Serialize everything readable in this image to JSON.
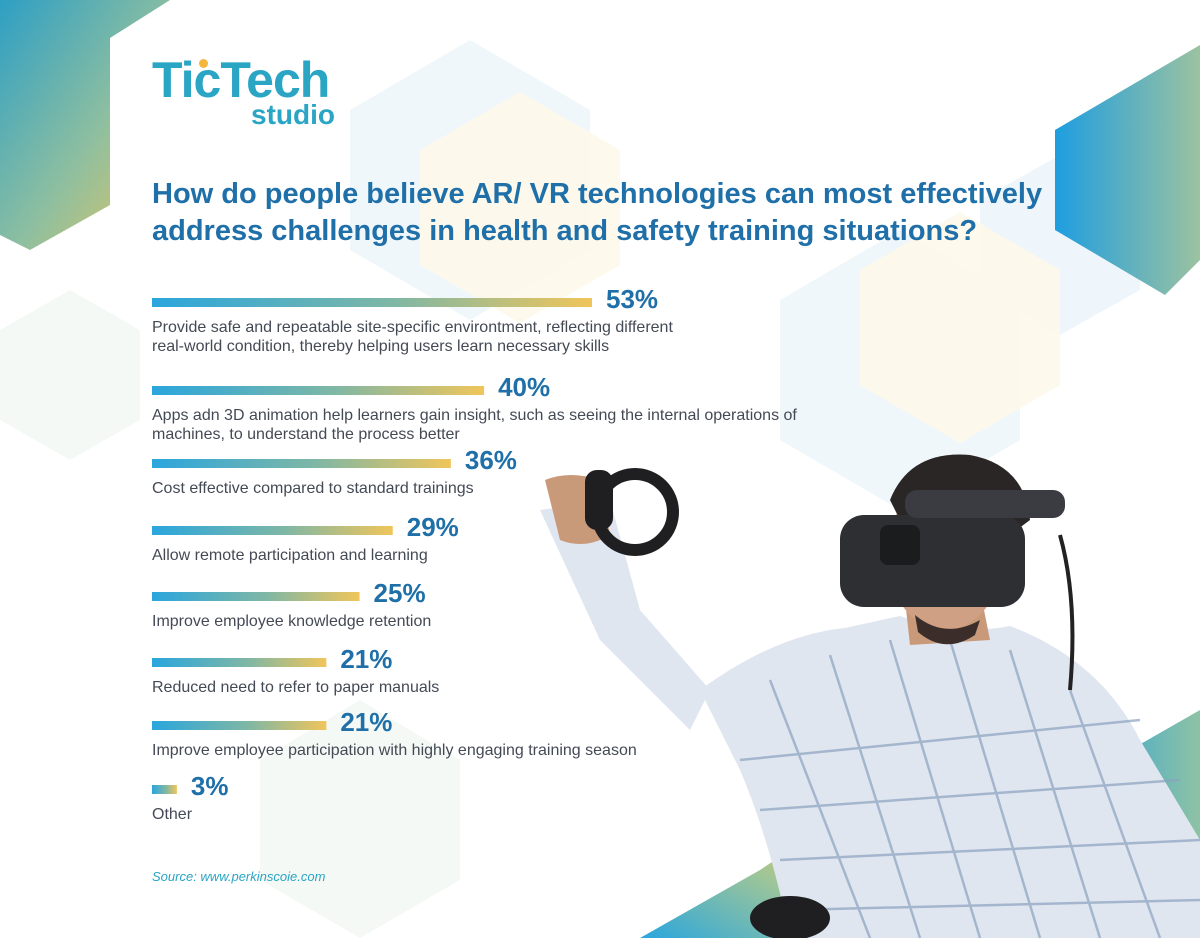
{
  "colors": {
    "bar_start": "#2aa6dd",
    "bar_mid": "#7fb7a5",
    "bar_end": "#f0c55a",
    "value_text": "#1f6fa8",
    "accent_teal": "#2aa5c4"
  },
  "logo": {
    "main": "TicTech",
    "sub": "studio"
  },
  "chart_data": {
    "type": "bar",
    "orientation": "horizontal",
    "title": "How do people believe AR/ VR technologies can most effectively address challenges in health and safety training situations?",
    "xlabel": "",
    "ylabel": "",
    "xlim": [
      0,
      53
    ],
    "grid": false,
    "categories": [
      "Provide safe and repeatable site-specific environtment, reflecting different real-world condition, thereby helping users learn necessary skills",
      "Apps adn 3D animation help learners gain insight, such as seeing the internal operations of machines, to understand the process better",
      "Cost effective compared to standard trainings",
      "Allow remote participation and learning",
      "Improve employee knowledge retention",
      "Reduced need to refer to paper manuals",
      "Improve employee participation with highly engaging training season",
      "Other"
    ],
    "values": [
      53,
      40,
      36,
      29,
      25,
      21,
      21,
      3
    ],
    "value_labels": [
      "53%",
      "40%",
      "36%",
      "29%",
      "25%",
      "21%",
      "21%",
      "3%"
    ]
  },
  "source": "Source:  www.perkinscoie.com"
}
